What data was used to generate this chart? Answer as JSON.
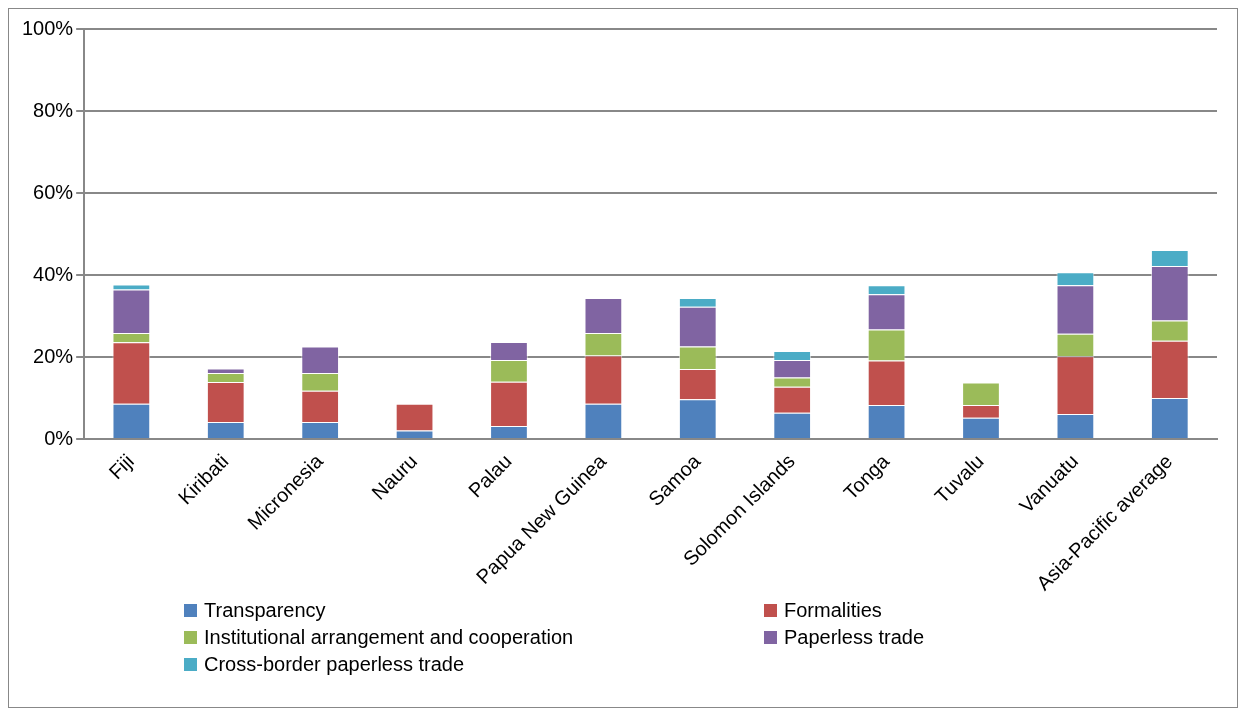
{
  "chart_data": {
    "type": "bar",
    "stacked": true,
    "categories": [
      "Fiji",
      "Kiribati",
      "Micronesia",
      "Nauru",
      "Palau",
      "Papua New Guinea",
      "Samoa",
      "Solomon Islands",
      "Tonga",
      "Tuvalu",
      "Vanuatu",
      "Asia-Pacific average"
    ],
    "series": [
      {
        "name": "Transparency",
        "color": "#4f81bd",
        "values": [
          8.6,
          4.2,
          4.2,
          2.1,
          3.2,
          8.6,
          9.7,
          6.4,
          8.3,
          5.2,
          6.1,
          10.0
        ]
      },
      {
        "name": "Formalities",
        "color": "#c0504d",
        "values": [
          15.0,
          9.7,
          7.6,
          6.5,
          10.8,
          11.8,
          7.4,
          6.4,
          10.9,
          3.1,
          14.1,
          14.0
        ]
      },
      {
        "name": "Institutional arrangement and cooperation",
        "color": "#9bbb59",
        "values": [
          2.3,
          2.2,
          4.3,
          0,
          5.3,
          5.5,
          5.5,
          2.2,
          7.5,
          5.5,
          5.5,
          4.9
        ]
      },
      {
        "name": "Paperless trade",
        "color": "#8064a2",
        "values": [
          10.6,
          1.1,
          6.5,
          0,
          4.4,
          8.5,
          9.7,
          4.3,
          8.6,
          0,
          11.8,
          13.3
        ]
      },
      {
        "name": "Cross-border paperless trade",
        "color": "#4bacc6",
        "values": [
          1.2,
          0,
          0,
          0,
          0,
          0,
          2.1,
          2.2,
          2.2,
          0,
          3.2,
          3.9
        ]
      }
    ],
    "ylim": [
      0,
      100
    ],
    "yticks": [
      {
        "value": 0,
        "label": "0%"
      },
      {
        "value": 20,
        "label": "20%"
      },
      {
        "value": 40,
        "label": "40%"
      },
      {
        "value": 60,
        "label": "60%"
      },
      {
        "value": 80,
        "label": "80%"
      },
      {
        "value": 100,
        "label": "100%"
      }
    ],
    "grid": "y",
    "legend": "bottom"
  }
}
